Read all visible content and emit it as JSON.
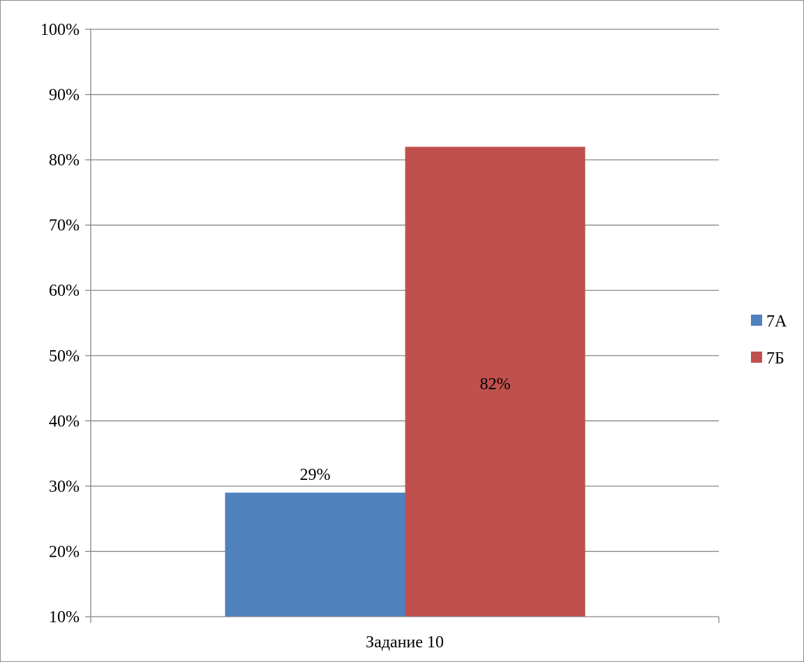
{
  "chart_data": {
    "type": "bar",
    "categories": [
      "Задание 10"
    ],
    "series": [
      {
        "name": "7А",
        "values": [
          29
        ],
        "color": "#4F81BD",
        "data_label": "29%"
      },
      {
        "name": "7Б",
        "values": [
          82
        ],
        "color": "#C0504D",
        "data_label": "82%"
      }
    ],
    "ylim": [
      10,
      100
    ],
    "yticks": [
      10,
      20,
      30,
      40,
      50,
      60,
      70,
      80,
      90,
      100
    ],
    "ytick_labels": [
      "10%",
      "20%",
      "30%",
      "40%",
      "50%",
      "60%",
      "70%",
      "80%",
      "90%",
      "100%"
    ],
    "grid": true,
    "legend_position": "right",
    "title": "",
    "xlabel": "",
    "ylabel": "",
    "gridline_color": "#868686",
    "axis_color": "#868686"
  }
}
